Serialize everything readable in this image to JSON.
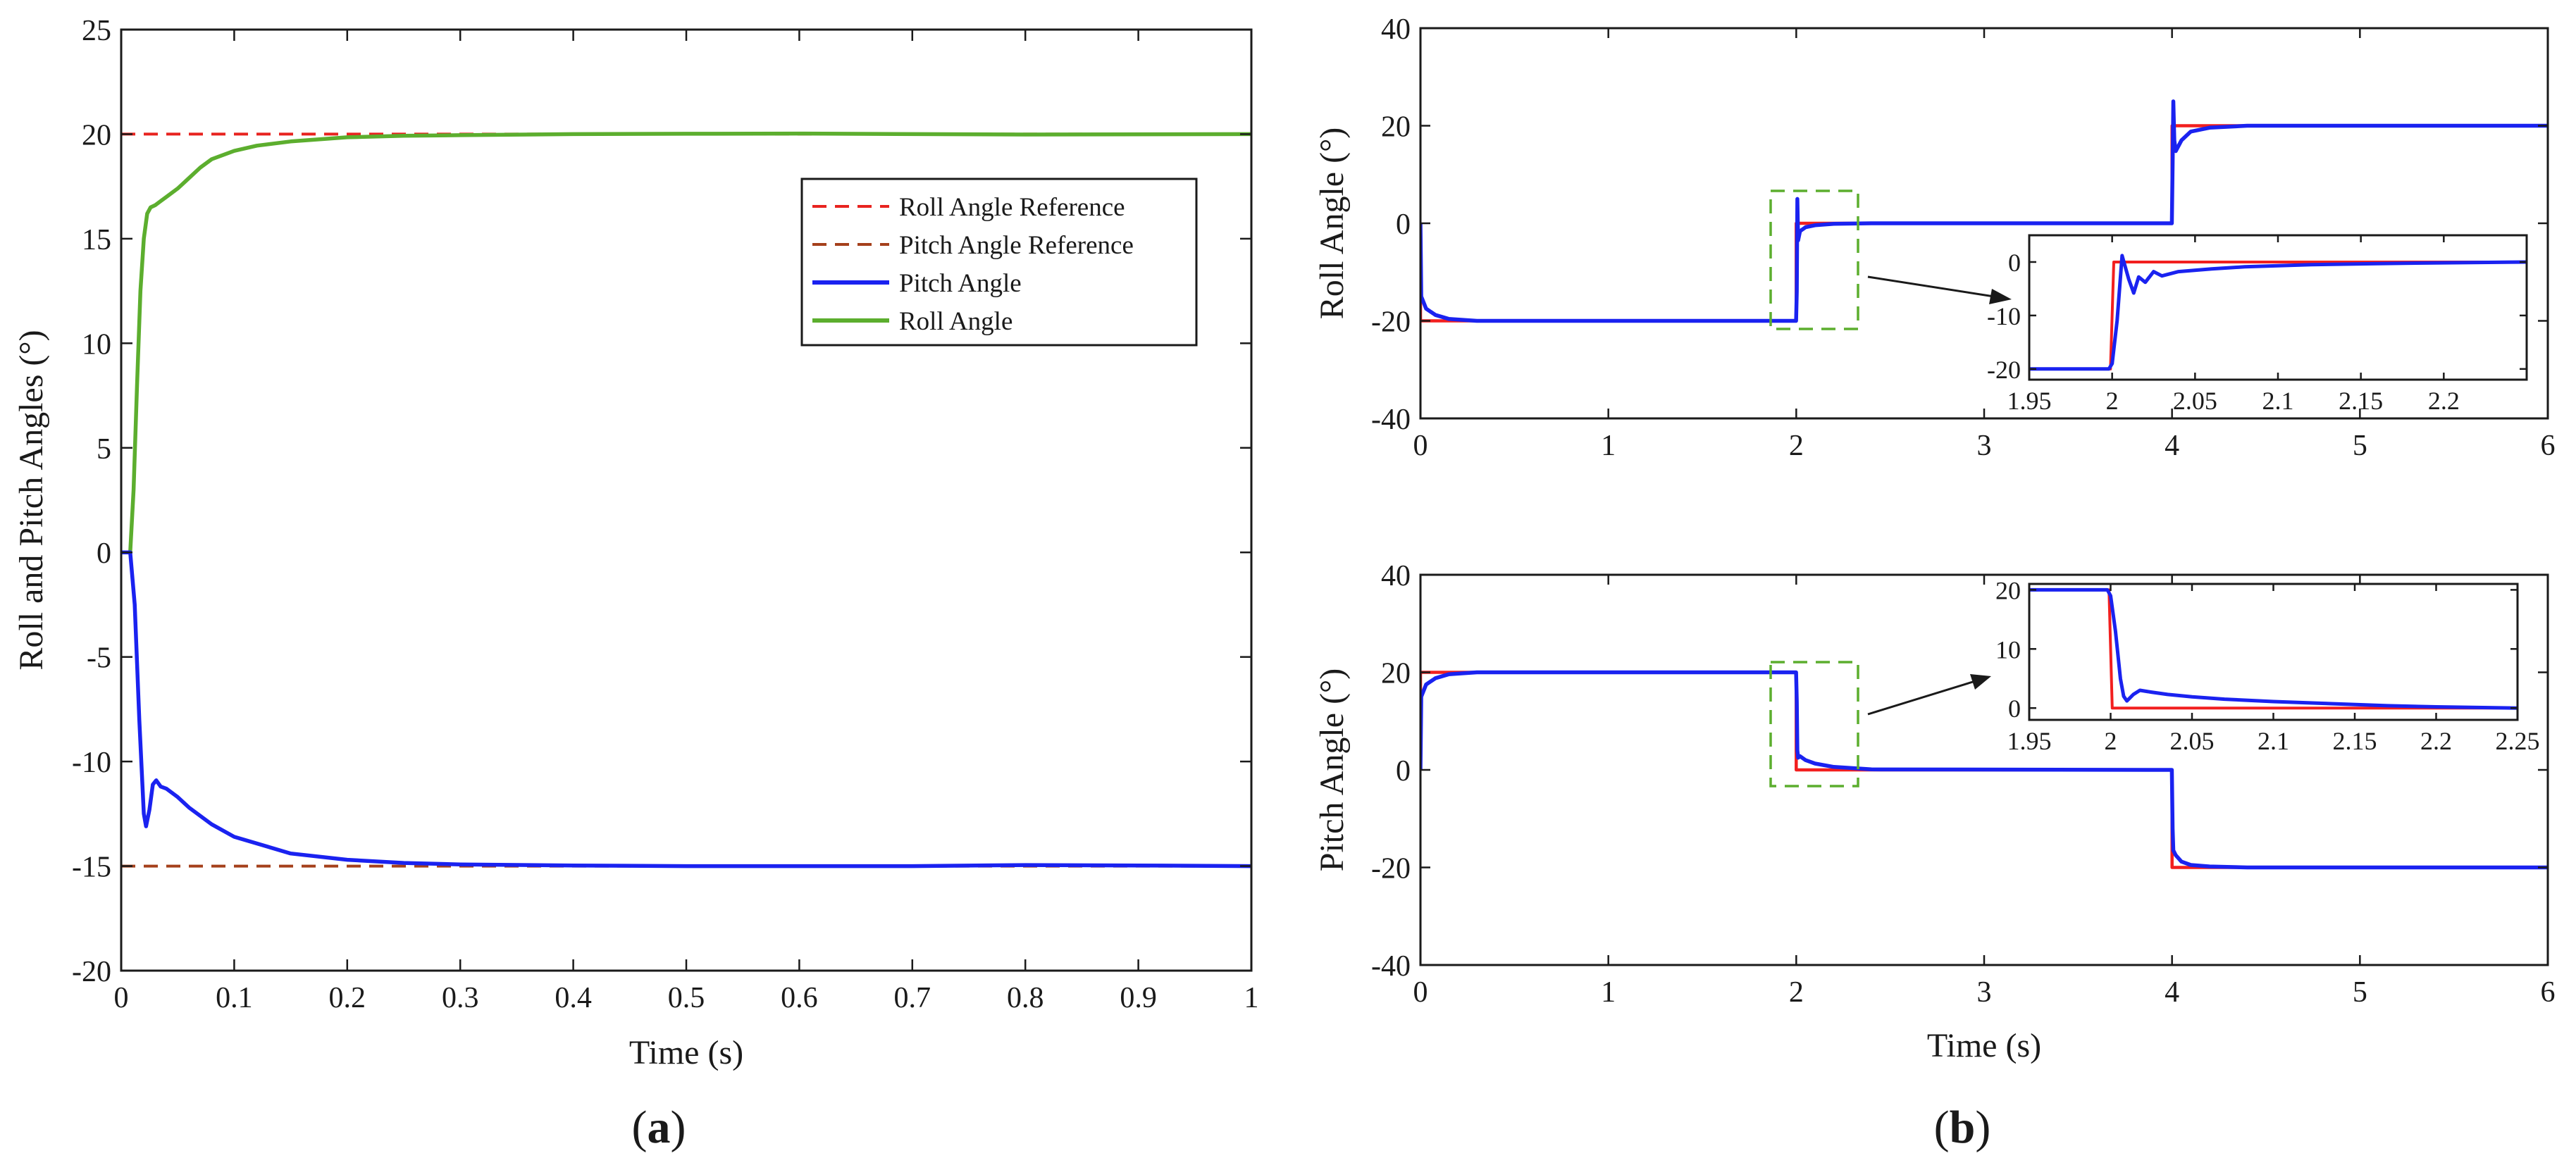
{
  "colors": {
    "roll_ref": "#e8231f",
    "pitch_ref": "#a5401b",
    "pitch": "#1a22f0",
    "roll": "#5cae2e",
    "ref_solid": "#f21f1f",
    "zoom_box": "#5cae2e",
    "axis": "#1a1a1a"
  },
  "panel_labels": {
    "a": {
      "open": "(",
      "letter": "a",
      "close": ")"
    },
    "b": {
      "open": "(",
      "letter": "b",
      "close": ")"
    }
  },
  "chart_data": [
    {
      "id": "a",
      "type": "line",
      "xlabel": "Time (s)",
      "ylabel": "Roll and Pitch Angles (°)",
      "xlim": [
        0,
        1
      ],
      "ylim": [
        -20,
        25
      ],
      "xticks": [
        "0",
        "0.1",
        "0.2",
        "0.3",
        "0.4",
        "0.5",
        "0.6",
        "0.7",
        "0.8",
        "0.9",
        "1"
      ],
      "yticks": [
        "-20",
        "-15",
        "-10",
        "-5",
        "0",
        "5",
        "10",
        "15",
        "20",
        "25"
      ],
      "legend_position": "center-right",
      "legend": [
        "Roll Angle Reference",
        "Pitch Angle Reference",
        "Pitch Angle",
        "Roll Angle"
      ],
      "series": [
        {
          "name": "Roll Angle Reference",
          "style": "dashed",
          "x": [
            0,
            1
          ],
          "y": [
            20,
            20
          ]
        },
        {
          "name": "Pitch Angle Reference",
          "style": "dashed",
          "x": [
            0,
            1
          ],
          "y": [
            -15,
            -15
          ]
        },
        {
          "name": "Pitch Angle",
          "style": "solid",
          "x": [
            0,
            0.008,
            0.012,
            0.016,
            0.02,
            0.022,
            0.025,
            0.028,
            0.031,
            0.035,
            0.04,
            0.05,
            0.06,
            0.08,
            0.1,
            0.15,
            0.2,
            0.25,
            0.3,
            0.4,
            0.5,
            0.6,
            0.7,
            0.8,
            0.9,
            1
          ],
          "y": [
            0,
            0,
            -2.5,
            -8,
            -12.5,
            -13.1,
            -12.3,
            -11.1,
            -10.9,
            -11.2,
            -11.3,
            -11.7,
            -12.2,
            -13,
            -13.6,
            -14.4,
            -14.7,
            -14.85,
            -14.92,
            -14.97,
            -15,
            -15,
            -15,
            -14.95,
            -14.97,
            -15
          ]
        },
        {
          "name": "Roll Angle",
          "style": "solid",
          "x": [
            0,
            0.008,
            0.011,
            0.014,
            0.017,
            0.02,
            0.023,
            0.026,
            0.03,
            0.035,
            0.04,
            0.05,
            0.06,
            0.07,
            0.08,
            0.1,
            0.12,
            0.15,
            0.2,
            0.25,
            0.3,
            0.4,
            0.5,
            0.6,
            0.8,
            1
          ],
          "y": [
            0,
            0,
            3,
            8,
            12.5,
            15,
            16.2,
            16.5,
            16.6,
            16.8,
            17,
            17.4,
            17.9,
            18.4,
            18.8,
            19.2,
            19.45,
            19.65,
            19.85,
            19.92,
            19.95,
            20,
            20.02,
            20.03,
            19.98,
            20
          ]
        }
      ]
    },
    {
      "id": "b-top",
      "type": "line",
      "xlabel": "",
      "ylabel": "Roll Angle (°)",
      "xlim": [
        0,
        6
      ],
      "ylim": [
        -40,
        40
      ],
      "xticks": [
        "0",
        "1",
        "2",
        "3",
        "4",
        "5",
        "6"
      ],
      "yticks": [
        "-40",
        "-20",
        "0",
        "20",
        "40"
      ],
      "series": [
        {
          "name": "Reference",
          "style": "solid",
          "x": [
            0,
            0,
            2,
            2,
            4,
            4,
            6
          ],
          "y": [
            0,
            -20,
            -20,
            0,
            0,
            20,
            20
          ]
        },
        {
          "name": "Roll Angle",
          "style": "solid",
          "x": [
            0,
            0.004,
            0.03,
            0.08,
            0.15,
            0.3,
            1.999,
            2.003,
            2.006,
            2.01,
            2.02,
            2.05,
            2.1,
            2.2,
            2.4,
            3.999,
            4.003,
            4.007,
            4.012,
            4.02,
            4.05,
            4.1,
            4.2,
            4.4,
            6
          ],
          "y": [
            0,
            -15,
            -17.5,
            -18.8,
            -19.6,
            -20,
            -20,
            -14,
            5,
            -3.5,
            -1.6,
            -0.8,
            -0.4,
            -0.1,
            0,
            0,
            12,
            25,
            17,
            14.8,
            17,
            18.8,
            19.6,
            20,
            20
          ]
        }
      ],
      "inset": {
        "xlim": [
          1.95,
          2.25
        ],
        "ylim": [
          -22,
          5
        ],
        "xticks": [
          "1.95",
          "2",
          "2.05",
          "2.1",
          "2.15",
          "2.2"
        ],
        "yticks": [
          "-20",
          "-10",
          "0"
        ],
        "series": [
          {
            "name": "Reference",
            "style": "solid",
            "x": [
              1.95,
              1.999,
              2.001,
              2.25
            ],
            "y": [
              -20,
              -20,
              0,
              0
            ]
          },
          {
            "name": "Roll Angle",
            "style": "solid",
            "x": [
              1.95,
              1.998,
              2.0,
              2.003,
              2.006,
              2.01,
              2.013,
              2.016,
              2.02,
              2.025,
              2.03,
              2.04,
              2.06,
              2.08,
              2.12,
              2.16,
              2.2,
              2.25
            ],
            "y": [
              -20,
              -20,
              -19,
              -11,
              1.2,
              -3.2,
              -5.8,
              -2.8,
              -3.8,
              -1.8,
              -2.6,
              -1.8,
              -1.3,
              -0.9,
              -0.5,
              -0.3,
              -0.15,
              0
            ]
          }
        ]
      }
    },
    {
      "id": "b-bottom",
      "type": "line",
      "xlabel": "Time (s)",
      "ylabel": "Pitch Angle (°)",
      "xlim": [
        0,
        6
      ],
      "ylim": [
        -40,
        40
      ],
      "xticks": [
        "0",
        "1",
        "2",
        "3",
        "4",
        "5",
        "6"
      ],
      "yticks": [
        "-40",
        "-20",
        "0",
        "20",
        "40"
      ],
      "series": [
        {
          "name": "Reference",
          "style": "solid",
          "x": [
            0,
            0,
            2,
            2,
            4,
            4,
            6
          ],
          "y": [
            0,
            20,
            20,
            0,
            0,
            -20,
            -20
          ]
        },
        {
          "name": "Pitch Angle",
          "style": "solid",
          "x": [
            0,
            0.004,
            0.03,
            0.08,
            0.15,
            0.3,
            1.999,
            2.003,
            2.006,
            2.01,
            2.02,
            2.05,
            2.1,
            2.2,
            2.4,
            3.999,
            4.003,
            4.007,
            4.02,
            4.05,
            4.1,
            4.2,
            4.4,
            6
          ],
          "y": [
            0,
            15,
            17.5,
            18.8,
            19.6,
            20,
            20,
            14,
            4,
            2.5,
            2.8,
            2,
            1.3,
            0.6,
            0.1,
            0,
            -12,
            -16.5,
            -17.5,
            -18.8,
            -19.5,
            -19.8,
            -20,
            -20
          ]
        }
      ],
      "inset": {
        "xlim": [
          1.95,
          2.25
        ],
        "ylim": [
          -2,
          21
        ],
        "xticks": [
          "1.95",
          "2",
          "2.05",
          "2.1",
          "2.15",
          "2.2",
          "2.25"
        ],
        "yticks": [
          "0",
          "10",
          "20"
        ],
        "series": [
          {
            "name": "Reference",
            "style": "solid",
            "x": [
              1.95,
              1.999,
              2.001,
              2.25
            ],
            "y": [
              20,
              20,
              0,
              0
            ]
          },
          {
            "name": "Pitch Angle",
            "style": "solid",
            "x": [
              1.95,
              1.998,
              2.0,
              2.003,
              2.006,
              2.008,
              2.01,
              2.014,
              2.018,
              2.025,
              2.035,
              2.05,
              2.07,
              2.1,
              2.13,
              2.17,
              2.2,
              2.25
            ],
            "y": [
              20,
              20,
              19,
              13,
              5,
              2,
              1.2,
              2.3,
              3,
              2.7,
              2.3,
              1.9,
              1.5,
              1.1,
              0.8,
              0.4,
              0.2,
              0
            ]
          }
        ]
      }
    }
  ]
}
